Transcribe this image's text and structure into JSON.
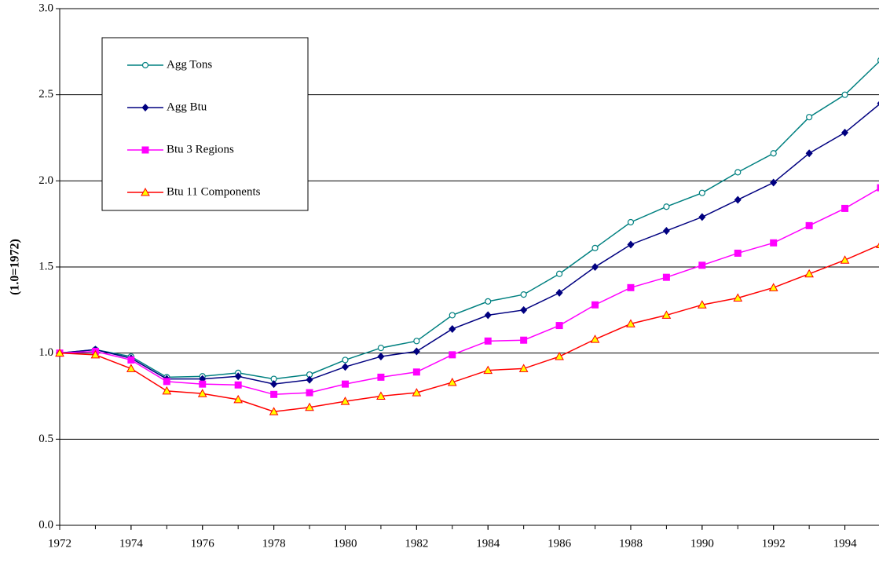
{
  "chart_data": {
    "type": "line",
    "y_label": "(1.0=1972)",
    "x": [
      1972,
      1973,
      1974,
      1975,
      1976,
      1977,
      1978,
      1979,
      1980,
      1981,
      1982,
      1983,
      1984,
      1985,
      1986,
      1987,
      1988,
      1989,
      1990,
      1991,
      1992,
      1993,
      1994,
      1995
    ],
    "xlim": [
      1972,
      1995
    ],
    "xticks": [
      1972,
      1974,
      1976,
      1978,
      1980,
      1982,
      1984,
      1986,
      1988,
      1990,
      1992,
      1994
    ],
    "ylim": [
      0,
      3
    ],
    "yticks": [
      {
        "value": 0,
        "label": "0.0"
      },
      0.5,
      {
        "value": 1,
        "label": "1.0"
      },
      1.5,
      {
        "value": 2,
        "label": "2.0"
      },
      2.5,
      {
        "value": 3,
        "label": "3.0"
      }
    ],
    "grid": true,
    "legend": "upper left",
    "series": [
      {
        "name": "Agg Tons",
        "color": "#008080",
        "marker": "circle",
        "values": [
          1.0,
          1.02,
          0.98,
          0.86,
          0.865,
          0.885,
          0.85,
          0.875,
          0.96,
          1.03,
          1.07,
          1.22,
          1.3,
          1.34,
          1.46,
          1.61,
          1.76,
          1.85,
          1.93,
          2.05,
          2.16,
          2.37,
          2.5,
          2.7
        ]
      },
      {
        "name": "Agg Btu",
        "color": "#000080",
        "marker": "diamond",
        "values": [
          1.0,
          1.02,
          0.97,
          0.85,
          0.85,
          0.865,
          0.82,
          0.845,
          0.92,
          0.98,
          1.01,
          1.14,
          1.22,
          1.25,
          1.35,
          1.5,
          1.63,
          1.71,
          1.79,
          1.89,
          1.99,
          2.16,
          2.28,
          2.45
        ]
      },
      {
        "name": "Btu 3 Regions",
        "color": "#ff00ff",
        "marker": "square",
        "values": [
          1.0,
          1.01,
          0.96,
          0.835,
          0.82,
          0.815,
          0.76,
          0.77,
          0.82,
          0.86,
          0.89,
          0.99,
          1.07,
          1.075,
          1.16,
          1.28,
          1.38,
          1.44,
          1.51,
          1.58,
          1.64,
          1.74,
          1.84,
          1.96
        ]
      },
      {
        "name": "Btu 11 Components",
        "color": "#ff0000",
        "marker": "triangle",
        "values": [
          1.0,
          0.99,
          0.91,
          0.78,
          0.765,
          0.73,
          0.66,
          0.685,
          0.72,
          0.75,
          0.77,
          0.83,
          0.9,
          0.91,
          0.98,
          1.08,
          1.17,
          1.22,
          1.28,
          1.32,
          1.38,
          1.46,
          1.54,
          1.63
        ]
      }
    ]
  }
}
